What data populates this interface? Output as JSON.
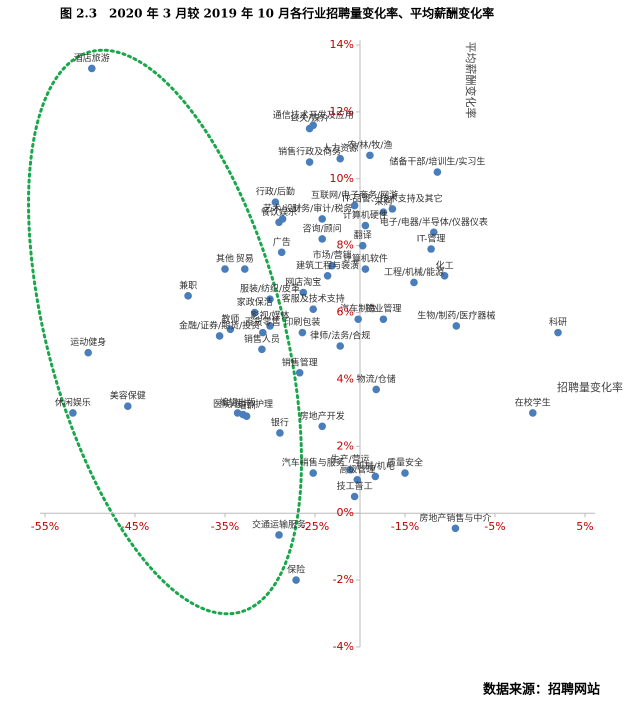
{
  "chart_data": {
    "type": "scatter",
    "title": "图 2.3　2020 年 3 月较 2019 年 10 月各行业招聘量变化率、平均薪酬变化率",
    "xlabel": "招聘量变化率",
    "ylabel": "平均薪酬变化率",
    "source": "数据来源：招聘网站",
    "color": "#4a7ebb",
    "tick_color": "#c00000",
    "yaxis_at_x": -20,
    "xlim": [
      -55,
      5
    ],
    "ylim": [
      -4,
      14
    ],
    "xticks": [
      {
        "value": -55,
        "label": "-55%"
      },
      {
        "value": -45,
        "label": "-45%"
      },
      {
        "value": -35,
        "label": "-35%"
      },
      {
        "value": -25,
        "label": "-25%"
      },
      {
        "value": -15,
        "label": "-15%"
      },
      {
        "value": -5,
        "label": "-5%"
      },
      {
        "value": 5,
        "label": "5%"
      }
    ],
    "yticks": [
      {
        "value": -4,
        "label": "-4%"
      },
      {
        "value": -2,
        "label": "-2%"
      },
      {
        "value": 0,
        "label": "0%"
      },
      {
        "value": 2,
        "label": "2%"
      },
      {
        "value": 4,
        "label": "4%"
      },
      {
        "value": 6,
        "label": "6%"
      },
      {
        "value": 8,
        "label": "8%"
      },
      {
        "value": 10,
        "label": "10%"
      },
      {
        "value": 12,
        "label": "12%"
      },
      {
        "value": 14,
        "label": "14%"
      }
    ],
    "labels": [
      "酒店旅游",
      "通信技术开发及应用",
      "公关/媒介",
      "人力资源",
      "农/林/牧/渔",
      "储备干部/培训生/实习生",
      "销售行政及商务",
      "行政/后勤",
      "互联网/电子商务/网游",
      "财务/审计/税务",
      "艺术/设计",
      "餐饮娱乐",
      "采购",
      "IT-品管、技术支持及其它",
      "电子/电器/半导体/仪器仪表",
      "广告",
      "计算机硬件",
      "IT-管理",
      "化工",
      "工程/机械/能源",
      "咨询/顾问",
      "翻译",
      "市场/营销",
      "其他",
      "贸易",
      "兼职",
      "建筑工程与装潢",
      "计算机软件",
      "服装/纺织/皮革",
      "网店淘宝",
      "汽车制造",
      "物业管理",
      "生物/制药/医疗器械",
      "科研",
      "家政保洁",
      "客服及技术支持",
      "教师",
      "影视/媒体",
      "百货零售",
      "印刷包装",
      "运动健身",
      "金融/证券/期货/投资",
      "律师/法务/合规",
      "销售人员",
      "销售管理",
      "物流/仓储",
      "在校学生",
      "休闲娱乐",
      "美容保健",
      "编辑出版",
      "培训",
      "医院/医疗/护理",
      "银行",
      "房地产开发",
      "汽车销售与服务",
      "生产/营运",
      "质量安全",
      "机械/机电",
      "高级管理",
      "技工普工",
      "房地产销售与中介",
      "交通运输服务",
      "保险"
    ],
    "x": [
      -49.8,
      -25.2,
      -25.6,
      -22.2,
      -18.9,
      -11.4,
      -25.6,
      -29.4,
      -20.6,
      -24.2,
      -28.6,
      -29,
      -17.4,
      -16.4,
      -11.8,
      -28.7,
      -19.4,
      -12.1,
      -10.6,
      -14,
      -24.2,
      -19.7,
      -23.1,
      -35,
      -32.8,
      -39.1,
      -23.6,
      -19.4,
      -30,
      -26.3,
      -20.2,
      -17.4,
      -9.3,
      2,
      -31.7,
      -25.2,
      -34.4,
      -30,
      -30.8,
      -26.4,
      -50.2,
      -35.6,
      -22.2,
      -30.9,
      -26.7,
      -18.2,
      -0.8,
      -51.9,
      -45.8,
      -33.6,
      -32.6,
      -33,
      -28.9,
      -24.2,
      -25.2,
      -21.1,
      -15,
      -18.3,
      -20.3,
      -20.6,
      -9.4,
      -29,
      -27.1
    ],
    "y": [
      13.3,
      11.6,
      11.5,
      10.6,
      10.7,
      10.2,
      10.5,
      9.3,
      9.2,
      8.8,
      8.8,
      8.7,
      9,
      9.1,
      8.4,
      7.8,
      8.6,
      7.9,
      7.1,
      6.9,
      8.2,
      8,
      7.4,
      7.3,
      7.3,
      6.5,
      7.1,
      7.3,
      6.4,
      6.6,
      5.8,
      5.8,
      5.6,
      5.4,
      6,
      6.1,
      5.5,
      5.6,
      5.4,
      5.4,
      4.8,
      5.3,
      5,
      4.9,
      4.2,
      3.7,
      3,
      3,
      3.2,
      3,
      2.9,
      2.95,
      2.4,
      2.6,
      1.2,
      1.3,
      1.2,
      1.1,
      1,
      0.5,
      -0.45,
      -0.65,
      -2
    ]
  }
}
